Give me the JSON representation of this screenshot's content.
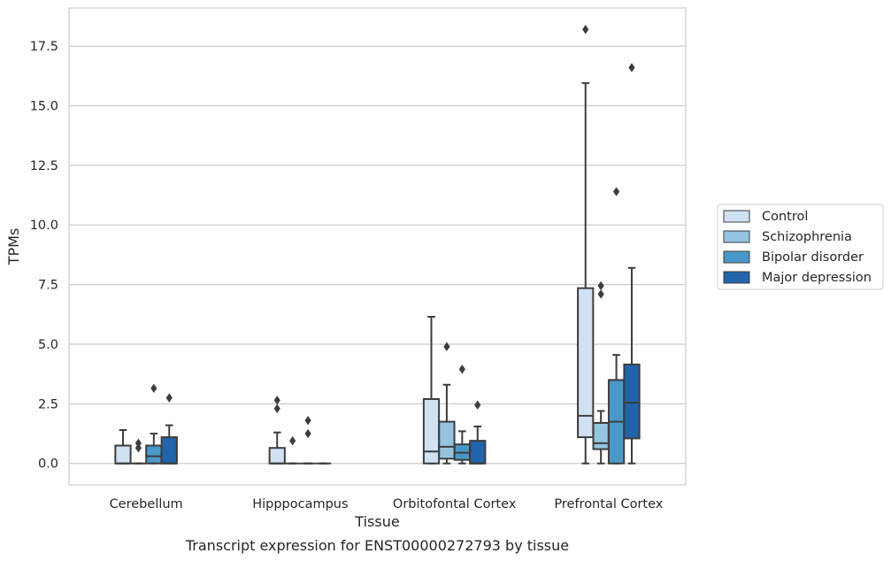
{
  "chart_data": {
    "type": "box",
    "title": "",
    "caption": "Transcript expression for ENST00000272793 by tissue",
    "xlabel": "Tissue",
    "ylabel": "TPMs",
    "ylim": [
      -0.9,
      19.1
    ],
    "yticks": [
      0.0,
      2.5,
      5.0,
      7.5,
      10.0,
      12.5,
      15.0,
      17.5
    ],
    "ytick_labels": [
      "0.0",
      "2.5",
      "5.0",
      "7.5",
      "10.0",
      "12.5",
      "15.0",
      "17.5"
    ],
    "grid": true,
    "legend_position": "right",
    "categories": [
      "Cerebellum",
      "Hipppocampus",
      "Orbitofontal Cortex",
      "Prefrontal Cortex"
    ],
    "series": [
      {
        "name": "Control",
        "color": "#d0e1f2",
        "boxes": [
          {
            "whislo": 0.0,
            "q1": 0.0,
            "med": 0.0,
            "q3": 0.75,
            "whishi": 1.4,
            "fliers": []
          },
          {
            "whislo": 0.0,
            "q1": 0.0,
            "med": 0.0,
            "q3": 0.65,
            "whishi": 1.3,
            "fliers": [
              2.3,
              2.65
            ]
          },
          {
            "whislo": 0.0,
            "q1": 0.0,
            "med": 0.5,
            "q3": 2.7,
            "whishi": 6.15,
            "fliers": []
          },
          {
            "whislo": 0.0,
            "q1": 1.1,
            "med": 2.0,
            "q3": 7.35,
            "whishi": 15.95,
            "fliers": [
              18.2
            ]
          }
        ]
      },
      {
        "name": "Schizophrenia",
        "color": "#94c4df",
        "boxes": [
          {
            "whislo": 0.0,
            "q1": 0.0,
            "med": 0.0,
            "q3": 0.0,
            "whishi": 0.0,
            "fliers": [
              0.65,
              0.85
            ]
          },
          {
            "whislo": 0.0,
            "q1": 0.0,
            "med": 0.0,
            "q3": 0.0,
            "whishi": 0.0,
            "fliers": [
              0.95
            ]
          },
          {
            "whislo": 0.0,
            "q1": 0.2,
            "med": 0.7,
            "q3": 1.75,
            "whishi": 3.3,
            "fliers": [
              4.9
            ]
          },
          {
            "whislo": 0.0,
            "q1": 0.6,
            "med": 0.85,
            "q3": 1.7,
            "whishi": 2.2,
            "fliers": [
              7.1,
              7.45
            ]
          }
        ]
      },
      {
        "name": "Bipolar disorder",
        "color": "#4a98c9",
        "boxes": [
          {
            "whislo": 0.0,
            "q1": 0.0,
            "med": 0.3,
            "q3": 0.75,
            "whishi": 1.25,
            "fliers": [
              3.15
            ]
          },
          {
            "whislo": 0.0,
            "q1": 0.0,
            "med": 0.0,
            "q3": 0.0,
            "whishi": 0.0,
            "fliers": [
              1.25,
              1.8
            ]
          },
          {
            "whislo": 0.0,
            "q1": 0.15,
            "med": 0.45,
            "q3": 0.8,
            "whishi": 1.35,
            "fliers": [
              3.95
            ]
          },
          {
            "whislo": 0.0,
            "q1": 0.0,
            "med": 1.75,
            "q3": 3.5,
            "whishi": 4.55,
            "fliers": [
              11.4
            ]
          }
        ]
      },
      {
        "name": "Major depression",
        "color": "#2164ab",
        "boxes": [
          {
            "whislo": 0.0,
            "q1": 0.0,
            "med": 0.0,
            "q3": 1.1,
            "whishi": 1.6,
            "fliers": [
              2.75
            ]
          },
          {
            "whislo": 0.0,
            "q1": 0.0,
            "med": 0.0,
            "q3": 0.0,
            "whishi": 0.0,
            "fliers": []
          },
          {
            "whislo": 0.0,
            "q1": 0.0,
            "med": 0.0,
            "q3": 0.95,
            "whishi": 1.55,
            "fliers": [
              2.45
            ]
          },
          {
            "whislo": 0.0,
            "q1": 1.05,
            "med": 2.55,
            "q3": 4.15,
            "whishi": 8.2,
            "fliers": [
              16.6
            ]
          }
        ]
      }
    ]
  }
}
